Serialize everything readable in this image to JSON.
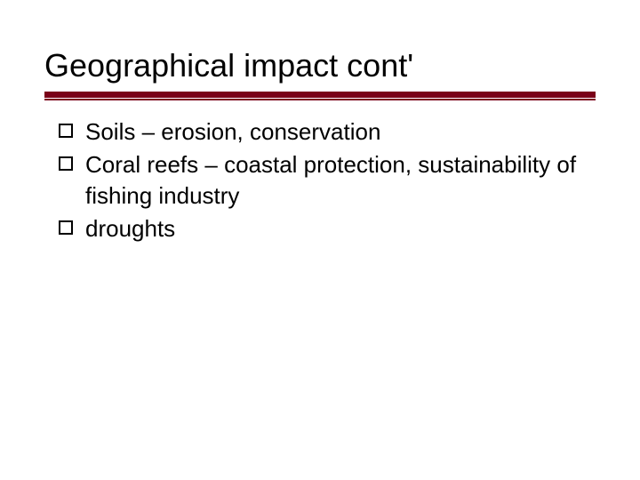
{
  "title": "Geographical impact cont'",
  "title_color": "#000000",
  "title_fontsize": 36,
  "rule_color": "#7a0018",
  "background_color": "#ffffff",
  "body_fontsize": 26,
  "body_color": "#000000",
  "bullets": [
    {
      "text": "Soils – erosion, conservation"
    },
    {
      "text": "Coral reefs – coastal protection, sustainability of fishing industry"
    },
    {
      "text": "droughts"
    }
  ]
}
